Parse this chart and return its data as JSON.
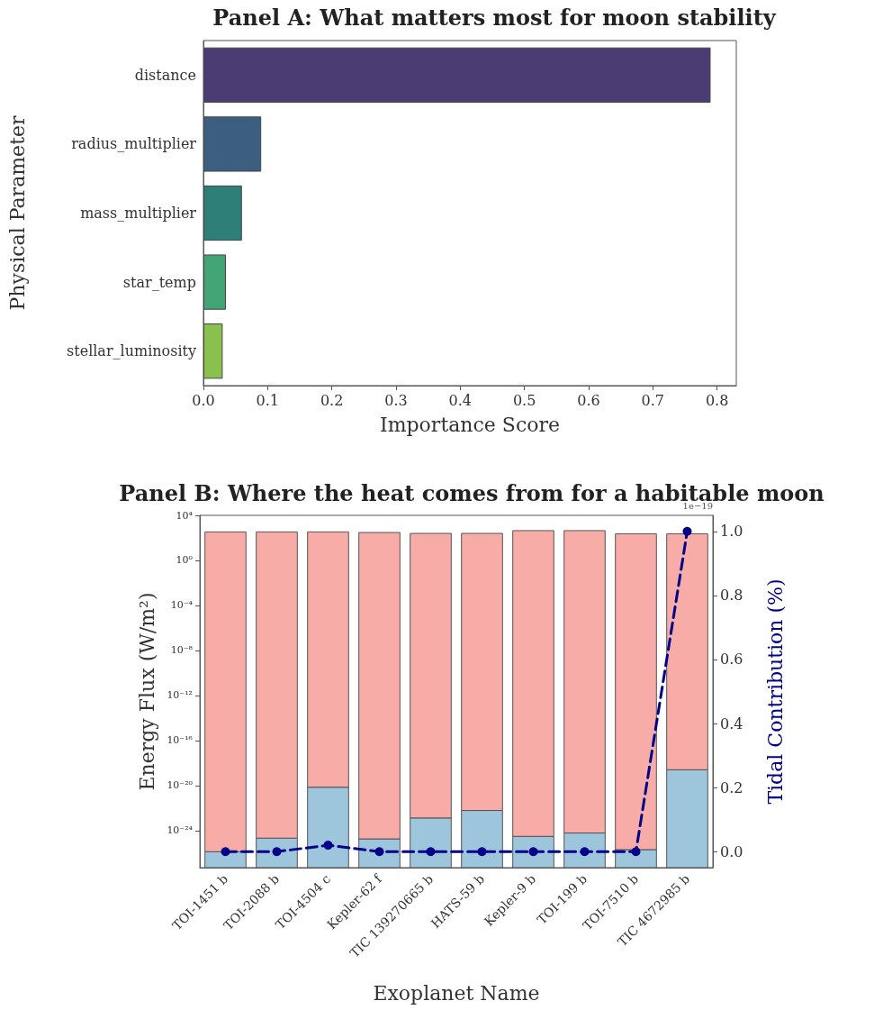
{
  "chart_data": [
    {
      "type": "bar",
      "orientation": "horizontal",
      "title": "Panel A: What matters most for moon stability",
      "xlabel": "Importance Score",
      "ylabel": "Physical Parameter",
      "categories": [
        "distance",
        "radius_multiplier",
        "mass_multiplier",
        "star_temp",
        "stellar_luminosity"
      ],
      "values": [
        0.79,
        0.09,
        0.06,
        0.035,
        0.03
      ],
      "colors": [
        "#4b3d74",
        "#3c5f80",
        "#2e7f77",
        "#43a574",
        "#8ac04e"
      ],
      "xlim": [
        0,
        0.83
      ],
      "xticks": [
        {
          "value": 0,
          "label": "0.0"
        },
        {
          "value": 0.1,
          "label": "0.1"
        },
        {
          "value": 0.2,
          "label": "0.2"
        },
        {
          "value": 0.3,
          "label": "0.3"
        },
        {
          "value": 0.4,
          "label": "0.4"
        },
        {
          "value": 0.5,
          "label": "0.5"
        },
        {
          "value": 0.6,
          "label": "0.6"
        },
        {
          "value": 0.7,
          "label": "0.7"
        },
        {
          "value": 0.8,
          "label": "0.8"
        }
      ]
    },
    {
      "type": "bar",
      "stacked": true,
      "log": "y",
      "title": "Panel B: Where the heat comes from for a habitable moon",
      "xlabel": "Exoplanet Name",
      "ylabel": "Energy Flux (W/m²)",
      "y2label": "Tidal Contribution (%)",
      "categories": [
        "TOI-1451 b",
        "TOI-2088 b",
        "TOI-4504 c",
        "Kepler-62 f",
        "TIC 139270665 b",
        "HATS-59 b",
        "Kepler-9 b",
        "TOI-199 b",
        "TOI-7510 b",
        "TIC 4672985 b"
      ],
      "series": [
        {
          "color": "#9dc6dc",
          "values": [
            1.3e-26,
            2.1e-25,
            7e-21,
            1.8e-25,
            1.3e-23,
            6e-23,
            3e-25,
            6e-25,
            2e-26,
            2.5e-19
          ]
        },
        {
          "color": "#f8aca8",
          "values": [
            340,
            340,
            340,
            300,
            250,
            250,
            440,
            440,
            230,
            230
          ]
        },
        {
          "type": "line",
          "axis": "y2",
          "color": "#00008b",
          "marker": "circle",
          "line_style": "dashed",
          "values": [
            0,
            0,
            0.02,
            0,
            0,
            0,
            0,
            0,
            0,
            1.0
          ]
        }
      ],
      "ylim": [
        5e-28,
        10000
      ],
      "yticks": [
        {
          "value": 10000,
          "label": "10⁴"
        },
        {
          "value": 1,
          "label": "10⁰"
        },
        {
          "value": 0.0001,
          "label": "10⁻⁴"
        },
        {
          "value": 1e-08,
          "label": "10⁻⁸"
        },
        {
          "value": 1e-12,
          "label": "10⁻¹²"
        },
        {
          "value": 1e-16,
          "label": "10⁻¹⁶"
        },
        {
          "value": 1e-20,
          "label": "10⁻²⁰"
        },
        {
          "value": 1e-24,
          "label": "10⁻²⁴"
        }
      ],
      "y2lim": [
        -0.05,
        1.05
      ],
      "y2ticks": [
        {
          "value": 0,
          "label": "0.0"
        },
        {
          "value": 0.2,
          "label": "0.2"
        },
        {
          "value": 0.4,
          "label": "0.4"
        },
        {
          "value": 0.6,
          "label": "0.6"
        },
        {
          "value": 0.8,
          "label": "0.8"
        },
        {
          "value": 1,
          "label": "1.0"
        }
      ],
      "annotations": [
        "1e−19"
      ]
    }
  ]
}
